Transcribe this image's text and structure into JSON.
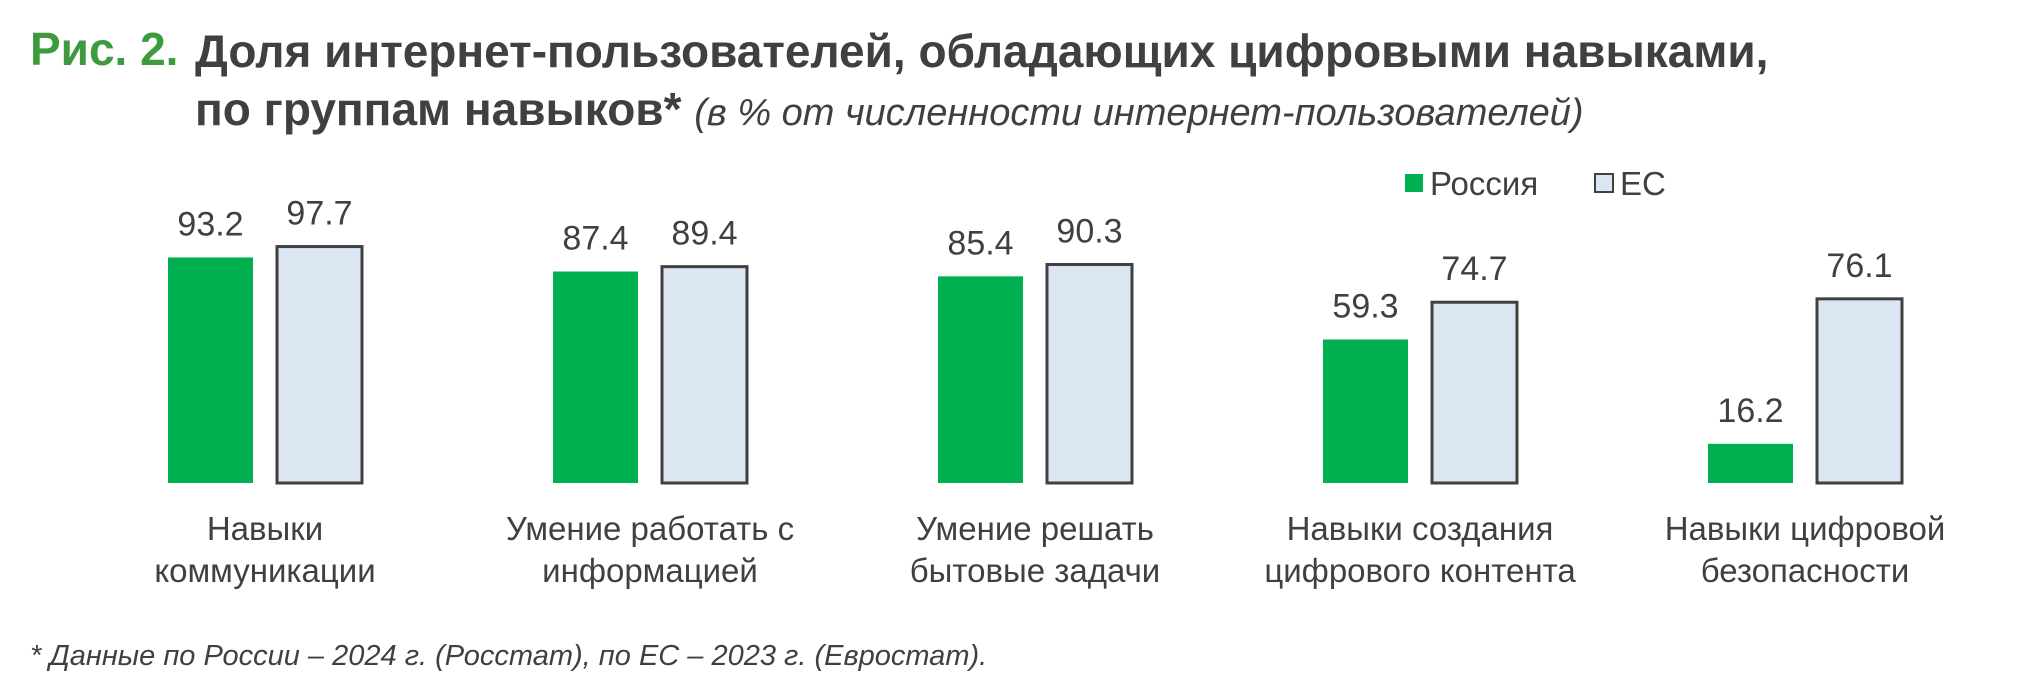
{
  "figure": {
    "label": "Рис. 2.",
    "title_line1": "Доля интернет-пользователей, обладающих цифровыми навыками,",
    "title_line2": "по группам навыков*",
    "subtitle": "(в % от численности интернет-пользователей)",
    "footnote": "* Данные по России – 2024 г. (Росстат), по ЕС – 2023 г. (Евростат)."
  },
  "chart_data": {
    "type": "bar",
    "categories": [
      [
        "Навыки",
        "коммуникации"
      ],
      [
        "Умение работать с",
        "информацией"
      ],
      [
        "Умение решать",
        "бытовые задачи"
      ],
      [
        "Навыки создания",
        "цифрового контента"
      ],
      [
        "Навыки цифровой",
        "безопасности"
      ]
    ],
    "series": [
      {
        "name": "Россия",
        "values": [
          93.2,
          87.4,
          85.4,
          59.3,
          16.2
        ],
        "color": "#00b050"
      },
      {
        "name": "ЕС",
        "values": [
          97.7,
          89.4,
          90.3,
          74.7,
          76.1
        ],
        "color": "#dce6f2",
        "border": "#404040"
      }
    ],
    "ylim": [
      0,
      100
    ],
    "legend": "top-right",
    "grid": false
  }
}
